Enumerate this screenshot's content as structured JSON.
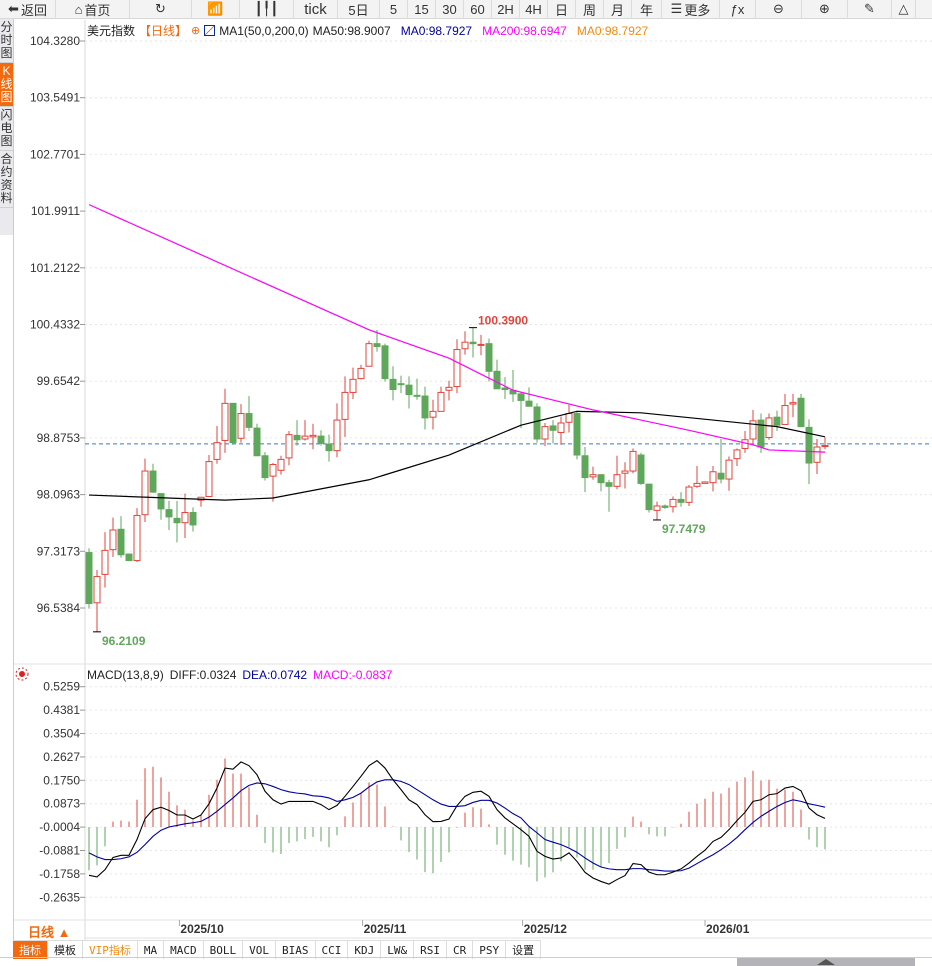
{
  "toolbar": {
    "items": [
      {
        "icon": "back-arrow-icon",
        "glyph": "⬅",
        "label": "返回",
        "w": 56
      },
      {
        "icon": "home-icon",
        "glyph": "⌂",
        "label": "首页",
        "w": 74
      },
      {
        "icon": "refresh-icon",
        "glyph": "↻",
        "label": "",
        "w": 62
      },
      {
        "icon": "line-chart-icon",
        "glyph": "📶",
        "label": "",
        "w": 48
      },
      {
        "icon": "candlestick-icon",
        "glyph": "┃╿┃",
        "label": "",
        "w": 54
      },
      {
        "icon": "",
        "glyph": "",
        "label": "tick",
        "w": 44
      },
      {
        "icon": "",
        "glyph": "",
        "label": "5日",
        "w": 42
      },
      {
        "icon": "",
        "glyph": "",
        "label": "5",
        "w": 28
      },
      {
        "icon": "",
        "glyph": "",
        "label": "15",
        "w": 28
      },
      {
        "icon": "",
        "glyph": "",
        "label": "30",
        "w": 28
      },
      {
        "icon": "",
        "glyph": "",
        "label": "60",
        "w": 28
      },
      {
        "icon": "",
        "glyph": "",
        "label": "2H",
        "w": 28
      },
      {
        "icon": "",
        "glyph": "",
        "label": "4H",
        "w": 28
      },
      {
        "icon": "",
        "glyph": "",
        "label": "日",
        "w": 28
      },
      {
        "icon": "",
        "glyph": "",
        "label": "周",
        "w": 28
      },
      {
        "icon": "",
        "glyph": "",
        "label": "月",
        "w": 28
      },
      {
        "icon": "",
        "glyph": "",
        "label": "年",
        "w": 30
      },
      {
        "icon": "menu-icon",
        "glyph": "☰",
        "label": "更多",
        "w": 58
      },
      {
        "icon": "function-icon",
        "glyph": "ƒx",
        "label": "",
        "w": 36
      },
      {
        "icon": "zoom-out-icon",
        "glyph": "⊖",
        "label": "",
        "w": 46
      },
      {
        "icon": "zoom-in-icon",
        "glyph": "⊕",
        "label": "",
        "w": 46
      },
      {
        "icon": "pen-icon",
        "glyph": "✎",
        "label": "",
        "w": 44
      },
      {
        "icon": "triangle-icon",
        "glyph": "△",
        "label": "",
        "w": 24
      }
    ]
  },
  "sidebar": [
    {
      "label": "分时图",
      "active": false
    },
    {
      "label": "K线图",
      "active": true
    },
    {
      "label": "闪电图",
      "active": false
    },
    {
      "label": "合约资料",
      "active": false
    }
  ],
  "header": {
    "symbol": "美元指数",
    "period": "【日线】",
    "ma_name": "MA1(50,0,200,0)",
    "ma50": "MA50:98.9007",
    "ma0a": "MA0:98.7927",
    "ma200": "MA200:98.6947",
    "ma0b": "MA0:98.7927"
  },
  "colors": {
    "up": "#e0443c",
    "down": "#5fa75a",
    "ma50": "#000000",
    "ma200": "#ff00ff",
    "dea": "#0000a0",
    "accent": "#f26a10",
    "last": "#3a78d0"
  },
  "chart_data": {
    "type": "candlestick",
    "price_axis": {
      "ticks": [
        "104.3280",
        "103.5491",
        "102.7701",
        "101.9911",
        "101.2122",
        "100.4332",
        "99.6542",
        "98.8753",
        "98.0963",
        "97.3173",
        "96.5384"
      ],
      "range": [
        96.5384,
        104.328
      ]
    },
    "last_price": 98.7927,
    "candles": [
      [
        97.3,
        97.36,
        96.53,
        96.6
      ],
      [
        96.61,
        97.06,
        96.21,
        96.97
      ],
      [
        97.0,
        97.58,
        96.82,
        97.33
      ],
      [
        97.34,
        97.78,
        97.24,
        97.61
      ],
      [
        97.62,
        97.8,
        97.23,
        97.27
      ],
      [
        97.28,
        97.28,
        97.19,
        97.19
      ],
      [
        97.19,
        97.91,
        97.17,
        97.81
      ],
      [
        97.82,
        98.59,
        97.72,
        98.42
      ],
      [
        98.42,
        98.52,
        98.12,
        98.13
      ],
      [
        98.11,
        98.11,
        97.75,
        97.9
      ],
      [
        97.89,
        98.01,
        97.61,
        97.79
      ],
      [
        97.77,
        98.01,
        97.44,
        97.71
      ],
      [
        97.71,
        98.11,
        97.5,
        97.85
      ],
      [
        97.85,
        97.92,
        97.59,
        97.68
      ],
      [
        98.02,
        98.06,
        97.93,
        98.06
      ],
      [
        98.07,
        98.64,
        98.07,
        98.55
      ],
      [
        98.58,
        99.04,
        98.52,
        98.81
      ],
      [
        98.84,
        99.55,
        98.67,
        99.35
      ],
      [
        99.35,
        99.35,
        98.78,
        98.81
      ],
      [
        98.87,
        99.34,
        98.81,
        99.21
      ],
      [
        99.21,
        99.45,
        98.97,
        99.02
      ],
      [
        99.01,
        99.07,
        98.63,
        98.63
      ],
      [
        98.63,
        98.68,
        98.29,
        98.33
      ],
      [
        98.35,
        98.53,
        98.0,
        98.51
      ],
      [
        98.43,
        98.63,
        98.37,
        98.58
      ],
      [
        98.6,
        98.97,
        98.5,
        98.92
      ],
      [
        98.91,
        99.12,
        98.77,
        98.85
      ],
      [
        98.86,
        99.12,
        98.84,
        98.9
      ],
      [
        98.89,
        99.07,
        98.72,
        98.91
      ],
      [
        98.9,
        98.98,
        98.77,
        98.8
      ],
      [
        98.79,
        98.92,
        98.55,
        98.7
      ],
      [
        98.7,
        99.35,
        98.61,
        99.12
      ],
      [
        99.13,
        99.72,
        98.89,
        99.5
      ],
      [
        99.5,
        99.84,
        99.41,
        99.68
      ],
      [
        99.69,
        99.88,
        99.68,
        99.83
      ],
      [
        99.86,
        100.21,
        99.86,
        100.17
      ],
      [
        100.17,
        100.36,
        100.06,
        100.13
      ],
      [
        100.14,
        100.17,
        99.65,
        99.69
      ],
      [
        99.68,
        99.86,
        99.39,
        99.54
      ],
      [
        99.62,
        99.73,
        99.49,
        99.61
      ],
      [
        99.6,
        99.72,
        99.28,
        99.47
      ],
      [
        99.46,
        99.69,
        99.4,
        99.45
      ],
      [
        99.45,
        99.58,
        98.99,
        99.15
      ],
      [
        99.16,
        99.4,
        98.99,
        99.24
      ],
      [
        99.24,
        99.58,
        99.24,
        99.5
      ],
      [
        99.53,
        99.66,
        99.39,
        99.57
      ],
      [
        99.58,
        100.23,
        99.49,
        100.09
      ],
      [
        100.1,
        100.34,
        100.02,
        100.19
      ],
      [
        100.19,
        100.39,
        99.98,
        100.17
      ],
      [
        100.15,
        100.29,
        100.01,
        100.16
      ],
      [
        100.17,
        100.24,
        99.65,
        99.79
      ],
      [
        99.79,
        99.95,
        99.55,
        99.55
      ],
      [
        99.56,
        99.71,
        99.41,
        99.54
      ],
      [
        99.53,
        99.81,
        99.37,
        99.48
      ],
      [
        99.48,
        99.5,
        99.01,
        99.39
      ],
      [
        99.38,
        99.57,
        99.31,
        99.31
      ],
      [
        99.3,
        99.35,
        98.81,
        98.86
      ],
      [
        98.86,
        99.08,
        98.76,
        99.03
      ],
      [
        99.04,
        99.12,
        98.8,
        98.98
      ],
      [
        98.95,
        99.17,
        98.78,
        99.08
      ],
      [
        99.09,
        99.33,
        98.95,
        99.21
      ],
      [
        99.21,
        99.25,
        98.58,
        98.64
      ],
      [
        98.63,
        98.75,
        98.13,
        98.33
      ],
      [
        98.34,
        98.48,
        98.3,
        98.37
      ],
      [
        98.37,
        98.37,
        98.14,
        98.26
      ],
      [
        98.26,
        98.3,
        97.86,
        98.21
      ],
      [
        98.21,
        98.63,
        98.17,
        98.37
      ],
      [
        98.39,
        98.54,
        98.18,
        98.42
      ],
      [
        98.42,
        98.73,
        98.39,
        98.69
      ],
      [
        98.64,
        98.67,
        98.23,
        98.25
      ],
      [
        98.24,
        98.24,
        97.85,
        97.89
      ],
      [
        97.88,
        98.0,
        97.75,
        97.94
      ],
      [
        97.94,
        97.96,
        97.9,
        97.92
      ],
      [
        97.93,
        98.07,
        97.85,
        98.03
      ],
      [
        98.03,
        98.13,
        97.93,
        97.99
      ],
      [
        97.99,
        98.23,
        97.94,
        98.2
      ],
      [
        98.21,
        98.49,
        98.19,
        98.25
      ],
      [
        98.25,
        98.28,
        98.25,
        98.27
      ],
      [
        98.26,
        98.49,
        98.14,
        98.41
      ],
      [
        98.39,
        98.86,
        98.25,
        98.31
      ],
      [
        98.31,
        98.62,
        98.15,
        98.57
      ],
      [
        98.59,
        98.73,
        98.49,
        98.71
      ],
      [
        98.73,
        98.97,
        98.67,
        98.85
      ],
      [
        98.86,
        99.26,
        98.8,
        99.11
      ],
      [
        99.12,
        99.21,
        98.67,
        98.75
      ],
      [
        98.88,
        99.21,
        98.85,
        99.15
      ],
      [
        99.16,
        99.25,
        98.97,
        99.05
      ],
      [
        99.06,
        99.48,
        99.06,
        99.32
      ],
      [
        99.34,
        99.48,
        99.16,
        99.36
      ],
      [
        99.42,
        99.48,
        99.03,
        99.03
      ],
      [
        99.02,
        99.13,
        98.24,
        98.53
      ],
      [
        98.54,
        98.86,
        98.38,
        98.75
      ],
      [
        98.76,
        98.88,
        98.72,
        98.77
      ]
    ],
    "ma50": [
      [
        1,
        98.09
      ],
      [
        18,
        98.02
      ],
      [
        24,
        98.05
      ],
      [
        36,
        98.3
      ],
      [
        46,
        98.64
      ],
      [
        55,
        99.05
      ],
      [
        62,
        99.24
      ],
      [
        70,
        99.22
      ],
      [
        79,
        99.12
      ],
      [
        87,
        99.03
      ],
      [
        93,
        98.89
      ]
    ],
    "ma200": [
      [
        1,
        102.08
      ],
      [
        36,
        100.36
      ],
      [
        46,
        99.97
      ],
      [
        54,
        99.53
      ],
      [
        64,
        99.26
      ],
      [
        76,
        98.98
      ],
      [
        84,
        98.78
      ],
      [
        86,
        98.71
      ],
      [
        93,
        98.68
      ]
    ],
    "annotations": [
      {
        "label": "100.3900",
        "index": 49,
        "price": 100.39,
        "kind": "high"
      },
      {
        "label": "96.2109",
        "index": 2,
        "price": 96.2109,
        "kind": "low"
      },
      {
        "label": "97.7479",
        "index": 72,
        "price": 97.7479,
        "kind": "low"
      }
    ],
    "macd": {
      "title": "MACD(13,8,9)",
      "diff_label": "DIFF:0.0324",
      "dea_label": "DEA:0.0742",
      "macd_label": "MACD:-0.0837",
      "ticks": [
        "0.5259",
        "0.4381",
        "0.3504",
        "0.2627",
        "0.1750",
        "0.0873",
        "-0.0004",
        "-0.0881",
        "-0.1758",
        "-0.2635"
      ],
      "range": [
        -0.2635,
        0.5259
      ],
      "hist": [
        -0.162,
        -0.144,
        -0.072,
        0.02,
        0.024,
        0.02,
        0.102,
        0.22,
        0.226,
        0.186,
        0.132,
        0.081,
        0.065,
        0.024,
        0.046,
        0.121,
        0.177,
        0.257,
        0.2,
        0.2,
        0.149,
        0.046,
        -0.06,
        -0.095,
        -0.101,
        -0.06,
        -0.054,
        -0.045,
        -0.037,
        -0.054,
        -0.076,
        -0.031,
        0.04,
        0.092,
        0.127,
        0.167,
        0.159,
        0.077,
        0.002,
        -0.05,
        -0.094,
        -0.122,
        -0.169,
        -0.174,
        -0.131,
        -0.095,
        -0.003,
        0.054,
        0.074,
        0.069,
        0.01,
        -0.066,
        -0.104,
        -0.126,
        -0.141,
        -0.151,
        -0.204,
        -0.189,
        -0.17,
        -0.129,
        -0.076,
        -0.114,
        -0.16,
        -0.16,
        -0.15,
        -0.135,
        -0.082,
        -0.039,
        0.039,
        0.02,
        -0.027,
        -0.035,
        -0.035,
        -0.002,
        0.012,
        0.057,
        0.087,
        0.106,
        0.132,
        0.125,
        0.147,
        0.17,
        0.186,
        0.211,
        0.174,
        0.177,
        0.144,
        0.14,
        0.132,
        0.065,
        -0.047,
        -0.076,
        -0.0837
      ],
      "diff": [
        -0.181,
        -0.187,
        -0.16,
        -0.114,
        -0.106,
        -0.106,
        -0.047,
        0.031,
        0.065,
        0.074,
        0.062,
        0.045,
        0.045,
        0.03,
        0.045,
        0.087,
        0.146,
        0.221,
        0.217,
        0.244,
        0.23,
        0.196,
        0.134,
        0.102,
        0.086,
        0.096,
        0.096,
        0.096,
        0.096,
        0.084,
        0.065,
        0.081,
        0.115,
        0.152,
        0.19,
        0.23,
        0.249,
        0.221,
        0.177,
        0.14,
        0.102,
        0.084,
        0.046,
        0.02,
        0.021,
        0.03,
        0.08,
        0.115,
        0.13,
        0.134,
        0.115,
        0.065,
        0.034,
        0.012,
        -0.01,
        -0.035,
        -0.091,
        -0.11,
        -0.12,
        -0.116,
        -0.097,
        -0.129,
        -0.17,
        -0.191,
        -0.204,
        -0.214,
        -0.197,
        -0.182,
        -0.137,
        -0.141,
        -0.169,
        -0.179,
        -0.179,
        -0.169,
        -0.157,
        -0.135,
        -0.11,
        -0.087,
        -0.054,
        -0.039,
        -0.01,
        0.024,
        0.055,
        0.096,
        0.102,
        0.121,
        0.125,
        0.146,
        0.152,
        0.136,
        0.071,
        0.046,
        0.0324
      ],
      "dea": [
        -0.097,
        -0.112,
        -0.122,
        -0.122,
        -0.119,
        -0.112,
        -0.095,
        -0.066,
        -0.035,
        -0.012,
        0.0,
        0.006,
        0.012,
        0.016,
        0.021,
        0.037,
        0.059,
        0.084,
        0.109,
        0.136,
        0.156,
        0.165,
        0.162,
        0.152,
        0.14,
        0.132,
        0.127,
        0.124,
        0.117,
        0.115,
        0.109,
        0.096,
        0.102,
        0.111,
        0.127,
        0.15,
        0.169,
        0.177,
        0.177,
        0.171,
        0.159,
        0.14,
        0.121,
        0.102,
        0.086,
        0.077,
        0.077,
        0.08,
        0.092,
        0.1,
        0.1,
        0.09,
        0.071,
        0.05,
        0.034,
        0.002,
        -0.022,
        -0.047,
        -0.057,
        -0.066,
        -0.079,
        -0.095,
        -0.116,
        -0.135,
        -0.15,
        -0.157,
        -0.16,
        -0.16,
        -0.156,
        -0.156,
        -0.16,
        -0.162,
        -0.165,
        -0.165,
        -0.164,
        -0.154,
        -0.137,
        -0.12,
        -0.104,
        -0.085,
        -0.064,
        -0.039,
        -0.01,
        0.017,
        0.04,
        0.059,
        0.077,
        0.092,
        0.102,
        0.096,
        0.087,
        0.081,
        0.0742
      ]
    },
    "x_labels": [
      {
        "label": "2025/10",
        "index": 12.3
      },
      {
        "label": "2025/11",
        "index": 35.2
      },
      {
        "label": "2025/12",
        "index": 55.2
      },
      {
        "label": "2026/01",
        "index": 78
      }
    ]
  },
  "footer": {
    "period_label": "日线 ▲",
    "tabs": [
      {
        "label": "指标",
        "cls": "active"
      },
      {
        "label": "模板",
        "cls": ""
      },
      {
        "label": "VIP指标",
        "cls": "vip"
      },
      {
        "label": "MA",
        "cls": ""
      },
      {
        "label": "MACD",
        "cls": ""
      },
      {
        "label": "BOLL",
        "cls": ""
      },
      {
        "label": "VOL",
        "cls": ""
      },
      {
        "label": "BIAS",
        "cls": ""
      },
      {
        "label": "CCI",
        "cls": ""
      },
      {
        "label": "KDJ",
        "cls": ""
      },
      {
        "label": "LW&",
        "cls": ""
      },
      {
        "label": "RSI",
        "cls": ""
      },
      {
        "label": "CR",
        "cls": ""
      },
      {
        "label": "PSY",
        "cls": ""
      },
      {
        "label": "设置",
        "cls": ""
      }
    ]
  }
}
